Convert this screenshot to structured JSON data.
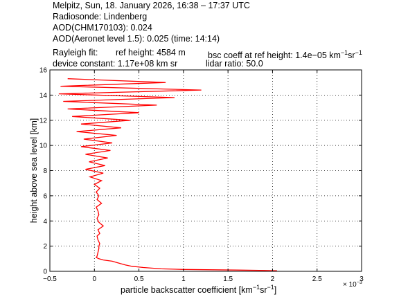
{
  "header": {
    "line1": "Melpitz, Sun, 18. January 2026, 16:38 – 17:37 UTC",
    "line2": "Radiosonde: Lindenberg",
    "line3": "AOD(CHM170103): 0.024",
    "line4": "AOD(Aeronet level 1.5): 0.025   (time: 14:14)",
    "rayleigh_fit": "Rayleigh fit:",
    "ref_height": "ref height: 4584 m",
    "bsc_coeff_prefix": "bsc coeff at ref height: 1.4e−05 km",
    "bsc_coeff_unit_sup1": "−1",
    "bsc_coeff_unit_mid": "sr",
    "bsc_coeff_unit_sup2": "−1",
    "device_constant": "device constant: 1.17e+08 km sr",
    "lidar_ratio": "lidar ratio: 50.0"
  },
  "chart_data": {
    "type": "line",
    "xlabel_main": "particle backscatter coefficient [km",
    "xlabel_sup1": "−1",
    "xlabel_mid": "sr",
    "xlabel_sup2": "−1",
    "xlabel_end": "]",
    "ylabel": "height above sea level [km]",
    "x_multiplier": "× 10",
    "x_multiplier_exp": "−3",
    "xlim": [
      -0.5,
      3
    ],
    "ylim": [
      0,
      16
    ],
    "xticks": [
      -0.5,
      0,
      0.5,
      1,
      1.5,
      2,
      2.5,
      3
    ],
    "xtick_labels": [
      "−0.5",
      "0",
      "0.5",
      "1",
      "1.5",
      "2",
      "2.5",
      "3"
    ],
    "yticks": [
      0,
      2,
      4,
      6,
      8,
      10,
      12,
      14,
      16
    ],
    "ytick_labels": [
      "0",
      "2",
      "4",
      "6",
      "8",
      "10",
      "12",
      "14",
      "16"
    ],
    "grid": true,
    "series_color": "#ff0000",
    "series": [
      {
        "height_km": [
          0.05,
          0.1,
          0.15,
          0.2,
          0.3,
          0.4,
          0.5,
          0.6,
          0.7,
          0.8,
          0.9,
          1.0,
          1.1,
          1.2,
          1.5,
          1.8,
          2.0,
          2.2,
          2.5,
          2.8,
          3.0,
          3.3,
          3.6,
          3.9,
          4.2,
          4.5,
          4.8,
          5.1,
          5.4,
          5.7,
          6.0,
          6.3,
          6.6,
          6.9,
          7.2,
          7.5,
          7.8,
          8.1,
          8.4,
          8.7,
          9.0,
          9.3,
          9.6,
          9.9,
          10.2,
          10.5,
          10.8,
          11.1,
          11.4,
          11.7,
          12.0,
          12.3,
          12.6,
          12.9,
          13.2,
          13.5,
          13.8,
          14.1,
          14.4,
          14.7,
          15.0,
          15.3
        ],
        "backscatter": [
          2.05,
          1.6,
          1.0,
          0.75,
          0.55,
          0.42,
          0.35,
          0.3,
          0.25,
          0.2,
          0.1,
          0.05,
          0.02,
          0.03,
          0.04,
          0.05,
          0.05,
          0.06,
          0.04,
          0.03,
          0.06,
          0.04,
          0.1,
          0.05,
          0.03,
          0.05,
          0.04,
          0.02,
          0.08,
          0.03,
          0.05,
          0.02,
          0.06,
          0.0,
          0.08,
          -0.05,
          0.1,
          -0.1,
          0.12,
          -0.06,
          0.15,
          -0.1,
          0.18,
          -0.15,
          0.2,
          -0.12,
          0.25,
          -0.2,
          0.3,
          -0.15,
          0.4,
          -0.25,
          0.5,
          -0.3,
          0.7,
          -0.35,
          0.9,
          -0.4,
          1.2,
          -0.38,
          0.8,
          -0.3
        ]
      }
    ]
  }
}
